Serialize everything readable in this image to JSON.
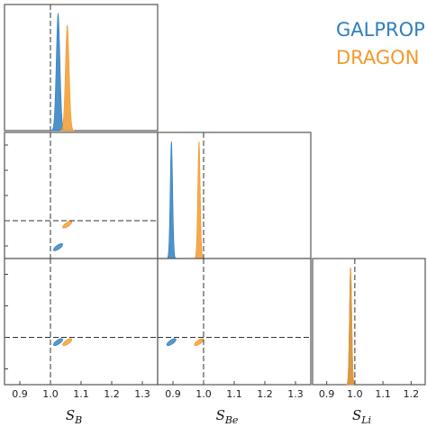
{
  "chart_data": {
    "type": "corner",
    "parameters": [
      {
        "symbol": "S",
        "sub": "B",
        "range": [
          0.85,
          1.35
        ],
        "ticks": [
          "0.9",
          "1.0",
          "1.1",
          "1.2",
          "1.3"
        ]
      },
      {
        "symbol": "S",
        "sub": "Be",
        "range": [
          0.85,
          1.35
        ],
        "ticks": [
          "0.9",
          "1.0",
          "1.1",
          "1.2",
          "1.3"
        ]
      },
      {
        "symbol": "S",
        "sub": "Li",
        "range": [
          0.85,
          1.25
        ],
        "ticks": [
          "0.9",
          "1.0",
          "1.1",
          "1.2"
        ]
      }
    ],
    "reference_value": 1.0,
    "series": [
      {
        "name": "GALPROP",
        "color": "#2e7fbf",
        "means": {
          "S_B": 1.025,
          "S_Be": 0.895,
          "S_Li": 0.985
        },
        "sigmas": {
          "S_B": 0.006,
          "S_Be": 0.004,
          "S_Li": 0.004
        }
      },
      {
        "name": "DRAGON",
        "color": "#f29a2e",
        "means": {
          "S_B": 1.055,
          "S_Be": 0.985,
          "S_Li": 0.985
        },
        "sigmas": {
          "S_B": 0.006,
          "S_Be": 0.004,
          "S_Li": 0.004
        }
      }
    ],
    "legend_position": "top-right",
    "grid": false
  }
}
